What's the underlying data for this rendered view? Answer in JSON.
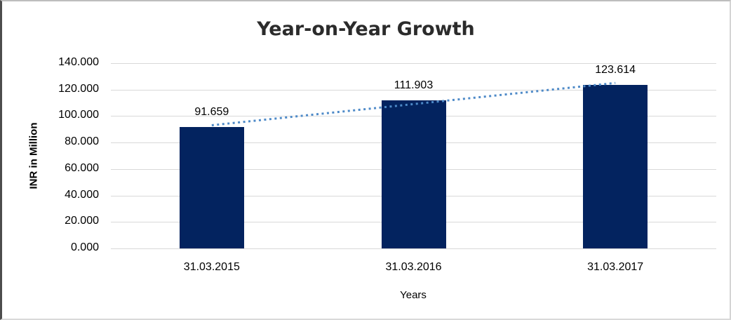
{
  "chart_data": {
    "type": "bar",
    "title": "Year-on-Year Growth",
    "categories": [
      "31.03.2015",
      "31.03.2016",
      "31.03.2017"
    ],
    "values": [
      91.659,
      111.903,
      123.614
    ],
    "data_labels": [
      "91.659",
      "111.903",
      "123.614"
    ],
    "xlabel": "Years",
    "ylabel": "INR in Million",
    "ylim": [
      0,
      140
    ],
    "ytick_step": 20,
    "ytick_labels": [
      "0.000",
      "20.000",
      "40.000",
      "60.000",
      "80.000",
      "100.000",
      "120.000",
      "140.000"
    ],
    "grid": true,
    "legend": "none",
    "colors": {
      "bar": "#03235f",
      "trendline": "#4e8ac8",
      "gridline": "#d9d9d9",
      "title_text": "#2b2b2b",
      "tick_text": "#000000"
    },
    "trendline": {
      "type": "linear",
      "style": "dotted"
    }
  }
}
